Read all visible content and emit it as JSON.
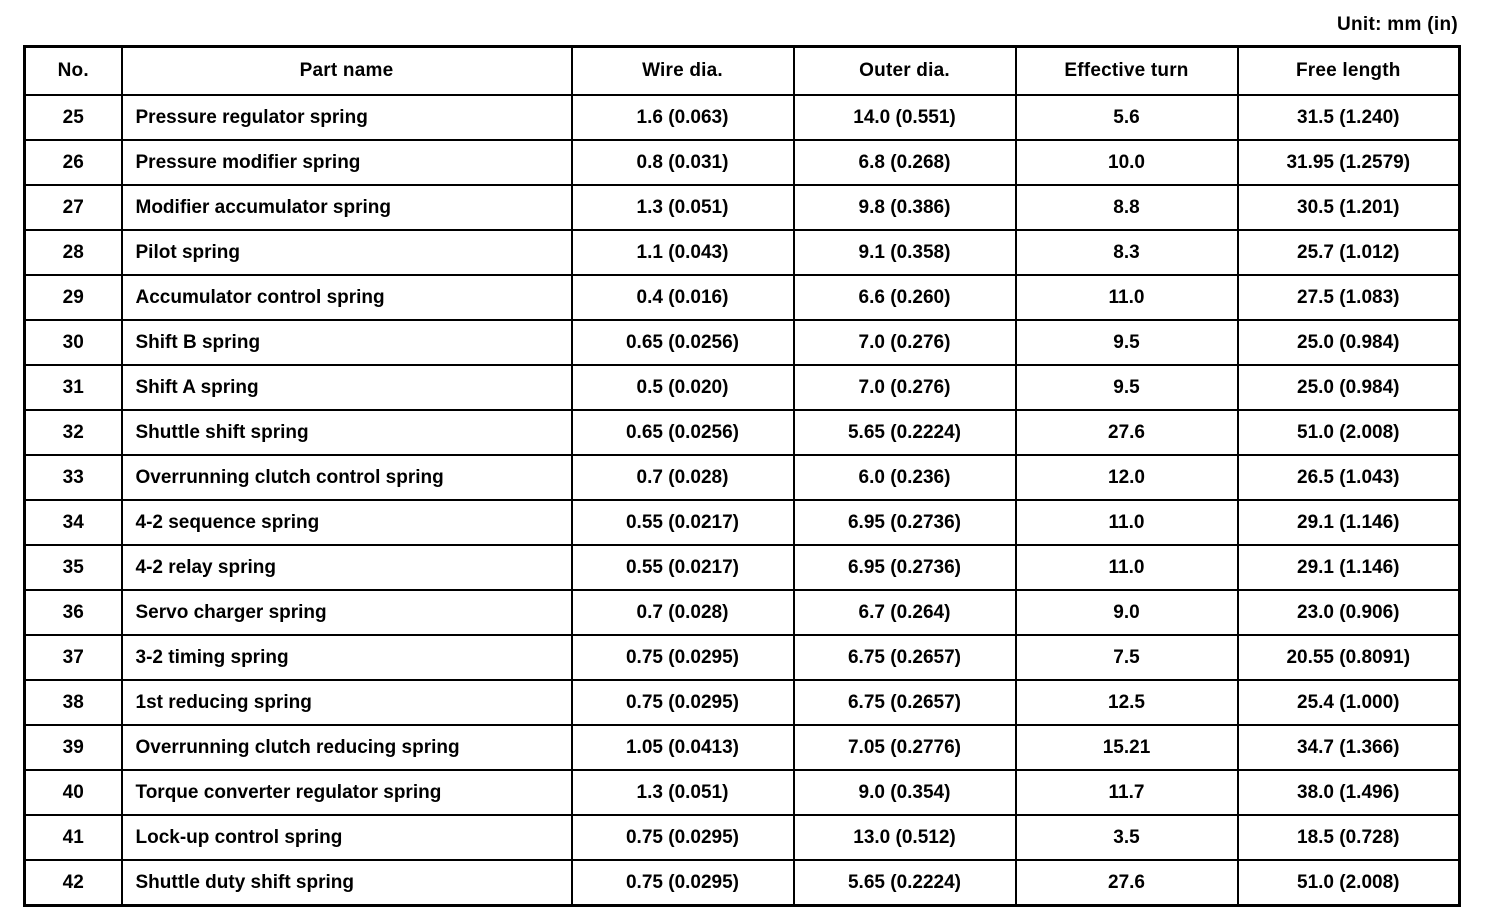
{
  "unit_label": "Unit: mm (in)",
  "table": {
    "headers": [
      "No.",
      "Part name",
      "Wire dia.",
      "Outer dia.",
      "Effective turn",
      "Free length"
    ],
    "rows": [
      [
        "25",
        "Pressure regulator spring",
        "1.6 (0.063)",
        "14.0 (0.551)",
        "5.6",
        "31.5 (1.240)"
      ],
      [
        "26",
        "Pressure modifier spring",
        "0.8 (0.031)",
        "6.8 (0.268)",
        "10.0",
        "31.95 (1.2579)"
      ],
      [
        "27",
        "Modifier accumulator spring",
        "1.3 (0.051)",
        "9.8 (0.386)",
        "8.8",
        "30.5 (1.201)"
      ],
      [
        "28",
        "Pilot spring",
        "1.1 (0.043)",
        "9.1 (0.358)",
        "8.3",
        "25.7 (1.012)"
      ],
      [
        "29",
        "Accumulator control spring",
        "0.4 (0.016)",
        "6.6 (0.260)",
        "11.0",
        "27.5 (1.083)"
      ],
      [
        "30",
        "Shift B spring",
        "0.65 (0.0256)",
        "7.0 (0.276)",
        "9.5",
        "25.0 (0.984)"
      ],
      [
        "31",
        "Shift A spring",
        "0.5 (0.020)",
        "7.0 (0.276)",
        "9.5",
        "25.0 (0.984)"
      ],
      [
        "32",
        "Shuttle shift spring",
        "0.65 (0.0256)",
        "5.65 (0.2224)",
        "27.6",
        "51.0 (2.008)"
      ],
      [
        "33",
        "Overrunning clutch control spring",
        "0.7 (0.028)",
        "6.0 (0.236)",
        "12.0",
        "26.5 (1.043)"
      ],
      [
        "34",
        "4-2 sequence spring",
        "0.55 (0.0217)",
        "6.95 (0.2736)",
        "11.0",
        "29.1 (1.146)"
      ],
      [
        "35",
        "4-2 relay spring",
        "0.55 (0.0217)",
        "6.95 (0.2736)",
        "11.0",
        "29.1 (1.146)"
      ],
      [
        "36",
        "Servo charger spring",
        "0.7 (0.028)",
        "6.7 (0.264)",
        "9.0",
        "23.0 (0.906)"
      ],
      [
        "37",
        "3-2 timing spring",
        "0.75 (0.0295)",
        "6.75 (0.2657)",
        "7.5",
        "20.55 (0.8091)"
      ],
      [
        "38",
        "1st reducing spring",
        "0.75 (0.0295)",
        "6.75 (0.2657)",
        "12.5",
        "25.4 (1.000)"
      ],
      [
        "39",
        "Overrunning clutch reducing spring",
        "1.05 (0.0413)",
        "7.05 (0.2776)",
        "15.21",
        "34.7 (1.366)"
      ],
      [
        "40",
        "Torque converter regulator spring",
        "1.3 (0.051)",
        "9.0 (0.354)",
        "11.7",
        "38.0 (1.496)"
      ],
      [
        "41",
        "Lock-up control spring",
        "0.75 (0.0295)",
        "13.0 (0.512)",
        "3.5",
        "18.5 (0.728)"
      ],
      [
        "42",
        "Shuttle duty shift spring",
        "0.75 (0.0295)",
        "5.65 (0.2224)",
        "27.6",
        "51.0 (2.008)"
      ]
    ]
  }
}
